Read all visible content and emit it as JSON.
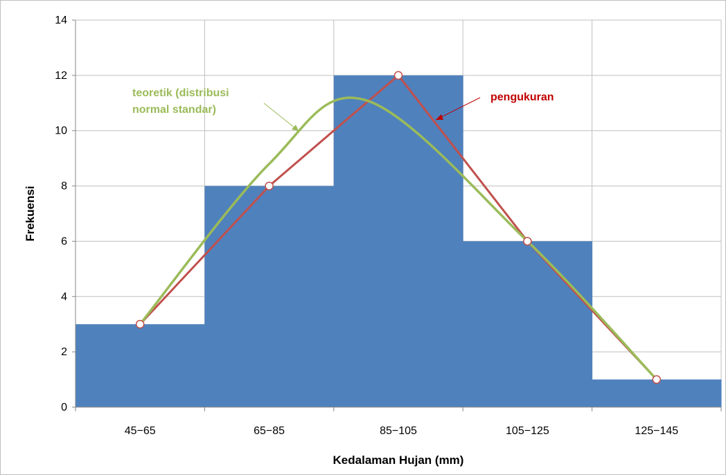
{
  "chart_data": {
    "type": "bar",
    "categories": [
      "45−65",
      "65−85",
      "85−105",
      "105−125",
      "125−145"
    ],
    "series": [
      {
        "kind": "histogram",
        "values": [
          3,
          8,
          12,
          6,
          1
        ],
        "color": "#4f81bd"
      },
      {
        "kind": "line",
        "values": [
          3,
          8,
          12,
          6,
          1
        ],
        "color": "#c0504d",
        "marker_fill": "#ffffff"
      },
      {
        "kind": "smooth-curve",
        "values": [
          3,
          8.8,
          11.1,
          6,
          1
        ],
        "peak": {
          "x_between": [
            2,
            3
          ],
          "y": 11.1
        },
        "color": "#9bbb59"
      }
    ],
    "xlabel": "Kedalaman Hujan (mm)",
    "ylabel": "Frekuensi",
    "ylim": [
      0,
      14
    ],
    "yticks": [
      0,
      2,
      4,
      6,
      8,
      10,
      12,
      14
    ],
    "grid": true,
    "annotations": [
      {
        "lines": [
          "teoretik (distribusi",
          "normal standar)"
        ],
        "color": "#9bbb59",
        "points_to": "smooth-curve"
      },
      {
        "lines": [
          "pengukuran"
        ],
        "color": "#c00000",
        "points_to": "line"
      }
    ]
  }
}
